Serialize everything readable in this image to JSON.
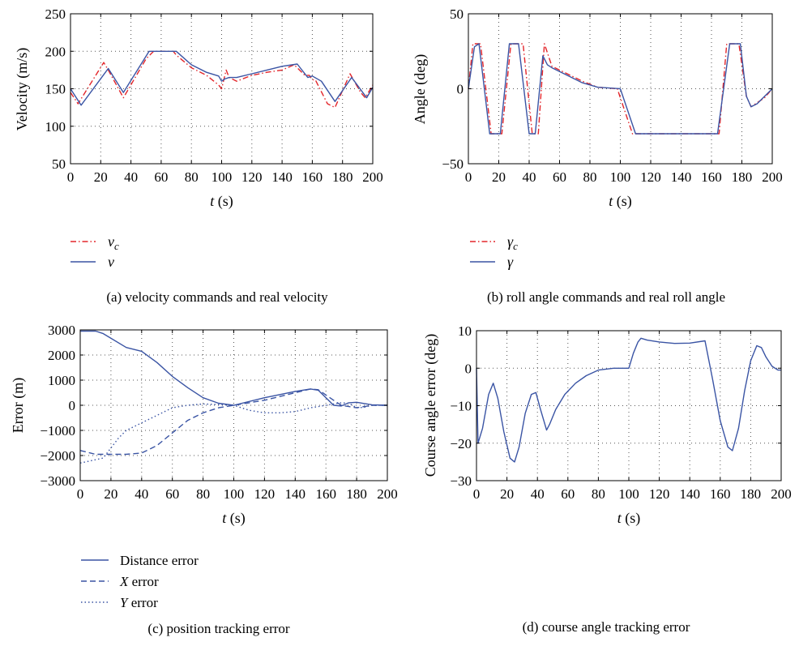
{
  "chart_data": [
    {
      "type": "line",
      "ylabel": "Velocity (m/s)",
      "xlabel": "t (s)",
      "xlim": [
        0,
        200
      ],
      "ylim": [
        50,
        250
      ],
      "xticks": [
        0,
        20,
        40,
        60,
        80,
        100,
        120,
        140,
        160,
        180,
        200
      ],
      "yticks": [
        50,
        100,
        150,
        200,
        250
      ],
      "grid": true,
      "legend_position": "below-left",
      "caption": "(a) velocity commands and real velocity",
      "series": [
        {
          "name": "v_c",
          "style": "dashdot",
          "color": "#e3262b",
          "x": [
            0,
            5,
            22,
            25,
            35,
            50,
            55,
            62,
            68,
            70,
            80,
            90,
            98,
            100,
            103,
            105,
            110,
            120,
            130,
            140,
            148,
            150,
            155,
            158,
            160,
            162,
            170,
            175,
            185,
            192,
            195,
            200
          ],
          "y": [
            145,
            130,
            185,
            175,
            138,
            190,
            200,
            200,
            200,
            195,
            178,
            168,
            155,
            150,
            175,
            165,
            160,
            168,
            172,
            175,
            182,
            178,
            168,
            168,
            162,
            162,
            130,
            125,
            170,
            145,
            138,
            155
          ]
        },
        {
          "name": "v",
          "style": "solid",
          "color": "#3a54a4",
          "x": [
            0,
            7,
            25,
            35,
            52,
            55,
            70,
            80,
            90,
            98,
            100,
            102,
            105,
            110,
            120,
            130,
            140,
            150,
            157,
            160,
            166,
            175,
            186,
            196,
            200
          ],
          "y": [
            150,
            128,
            177,
            145,
            200,
            200,
            200,
            182,
            172,
            167,
            160,
            163,
            165,
            165,
            170,
            175,
            180,
            183,
            165,
            167,
            160,
            133,
            165,
            138,
            152
          ]
        }
      ]
    },
    {
      "type": "line",
      "ylabel": "Angle (deg)",
      "xlabel": "t (s)",
      "xlim": [
        0,
        200
      ],
      "ylim": [
        -50,
        50
      ],
      "xticks": [
        0,
        20,
        40,
        60,
        80,
        100,
        120,
        140,
        160,
        180,
        200
      ],
      "yticks": [
        -50,
        0,
        50
      ],
      "grid": true,
      "legend_position": "below-left",
      "caption": "(b) roll angle commands and real roll angle",
      "series": [
        {
          "name": "γ_c",
          "style": "dashdot",
          "color": "#e3262b",
          "x": [
            0,
            3,
            8,
            15,
            22,
            28,
            36,
            42,
            46,
            50,
            55,
            65,
            75,
            85,
            98,
            108,
            165,
            170,
            178,
            183,
            186,
            195,
            200
          ],
          "y": [
            0,
            30,
            30,
            -30,
            -30,
            30,
            30,
            -30,
            -30,
            30,
            15,
            10,
            5,
            1,
            0,
            -30,
            -30,
            30,
            30,
            -5,
            -12,
            -6,
            0
          ]
        },
        {
          "name": "γ",
          "style": "solid",
          "color": "#3a54a4",
          "x": [
            0,
            4,
            7,
            14,
            21,
            27,
            33,
            40,
            44,
            49,
            52,
            55,
            65,
            75,
            85,
            100,
            110,
            164,
            172,
            179,
            183,
            186,
            190,
            195,
            200
          ],
          "y": [
            0,
            28,
            30,
            -30,
            -30,
            30,
            30,
            -30,
            -30,
            22,
            16,
            14,
            9,
            4,
            1,
            0,
            -30,
            -30,
            30,
            30,
            -5,
            -12,
            -10,
            -5,
            0
          ]
        }
      ]
    },
    {
      "type": "line",
      "ylabel": "Error (m)",
      "xlabel": "t (s)",
      "xlim": [
        0,
        200
      ],
      "ylim": [
        -3000,
        3000
      ],
      "xticks": [
        0,
        20,
        40,
        60,
        80,
        100,
        120,
        140,
        160,
        180,
        200
      ],
      "yticks": [
        -3000,
        -2000,
        -1000,
        0,
        1000,
        2000,
        3000
      ],
      "grid": true,
      "legend_position": "below-left",
      "caption": "(c) position tracking error",
      "series": [
        {
          "name": "Distance error",
          "style": "solid",
          "color": "#3a54a4",
          "x": [
            0,
            10,
            15,
            30,
            40,
            50,
            60,
            70,
            80,
            90,
            100,
            120,
            140,
            150,
            155,
            165,
            170,
            175,
            180,
            190,
            200
          ],
          "y": [
            2950,
            2950,
            2850,
            2300,
            2150,
            1700,
            1150,
            700,
            300,
            80,
            0,
            300,
            550,
            650,
            600,
            0,
            -30,
            100,
            120,
            20,
            0
          ]
        },
        {
          "name": "X error",
          "style": "dashed",
          "color": "#3a54a4",
          "x": [
            0,
            10,
            20,
            30,
            40,
            50,
            60,
            70,
            80,
            90,
            100,
            110,
            120,
            140,
            150,
            155,
            165,
            170,
            175,
            180,
            185,
            190,
            200
          ],
          "y": [
            -1800,
            -1950,
            -1950,
            -1950,
            -1900,
            -1600,
            -1100,
            -600,
            -300,
            -100,
            0,
            100,
            200,
            500,
            650,
            620,
            200,
            0,
            -50,
            -100,
            -50,
            0,
            0
          ]
        },
        {
          "name": "Y error",
          "style": "dotted",
          "color": "#3a54a4",
          "x": [
            0,
            15,
            20,
            25,
            30,
            40,
            50,
            60,
            70,
            80,
            90,
            100,
            110,
            120,
            130,
            140,
            150,
            160,
            170,
            175,
            180,
            185,
            190,
            200
          ],
          "y": [
            -2300,
            -2100,
            -1700,
            -1300,
            -1000,
            -700,
            -400,
            -100,
            0,
            50,
            30,
            0,
            -200,
            -300,
            -300,
            -250,
            -100,
            0,
            100,
            80,
            -100,
            -80,
            0,
            0
          ]
        }
      ]
    },
    {
      "type": "line",
      "ylabel": "Course angle error (deg)",
      "xlabel": "t (s)",
      "xlim": [
        0,
        200
      ],
      "ylim": [
        -30,
        10
      ],
      "xticks": [
        0,
        20,
        40,
        60,
        80,
        100,
        120,
        140,
        160,
        180,
        200
      ],
      "yticks": [
        -30,
        -20,
        -10,
        0,
        10
      ],
      "grid": true,
      "caption": "(d) course angle tracking error",
      "series": [
        {
          "name": "course angle error",
          "style": "solid",
          "color": "#3a54a4",
          "x": [
            0,
            1,
            4,
            8,
            11,
            14,
            18,
            22,
            25,
            28,
            32,
            36,
            39,
            42,
            46,
            48,
            52,
            58,
            65,
            72,
            80,
            90,
            100,
            103,
            106,
            108,
            112,
            120,
            130,
            140,
            150,
            155,
            160,
            165,
            168,
            172,
            176,
            180,
            184,
            187,
            190,
            194,
            198,
            200
          ],
          "y": [
            0,
            -20,
            -16,
            -7,
            -4,
            -8,
            -17,
            -24,
            -25,
            -21,
            -12,
            -7,
            -6.5,
            -11,
            -16.5,
            -15,
            -11,
            -7,
            -4,
            -2,
            -0.5,
            0,
            0,
            4,
            7,
            8,
            7.5,
            7,
            6.6,
            6.7,
            7.3,
            -3,
            -14,
            -21,
            -22,
            -16,
            -6,
            2,
            6,
            5.5,
            3,
            0.5,
            -0.5,
            -0.5
          ]
        }
      ]
    }
  ],
  "legends": {
    "a": {
      "item1": {
        "main": "v",
        "sub": "c"
      },
      "item2": {
        "main": "v"
      }
    },
    "b": {
      "item1": {
        "main": "γ",
        "sub": "c"
      },
      "item2": {
        "main": "γ"
      }
    },
    "c": {
      "item1": {
        "text": "Distance error"
      },
      "item2": {
        "main": "X",
        "rest": " error"
      },
      "item3": {
        "main": "Y",
        "rest": " error"
      }
    }
  },
  "captions": {
    "a": "(a)  velocity commands and real velocity",
    "b": "(b)  roll angle commands and real roll angle",
    "c": "(c)  position tracking error",
    "d": "(d)  course angle tracking error"
  },
  "xlabel_parts": {
    "var": "t",
    "unit": " (s)"
  },
  "colors": {
    "red": "#e3262b",
    "blue": "#3a54a4",
    "grid": "#555555"
  }
}
